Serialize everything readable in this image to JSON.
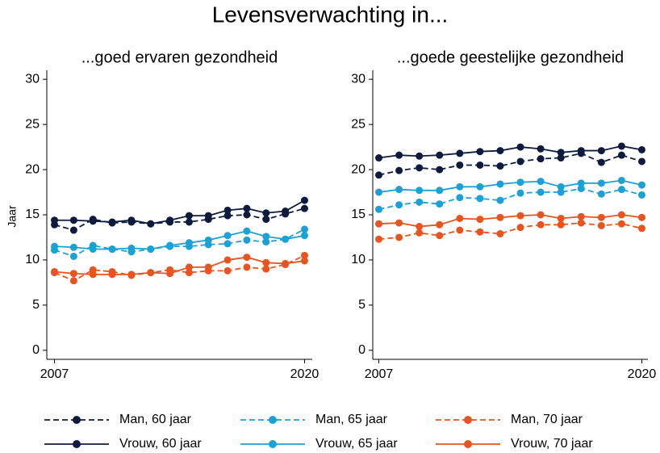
{
  "title": "Levensverwachting in...",
  "legend": [
    {
      "name": "Man, 60 jaar",
      "color": "#0d1b3e",
      "dashed": true
    },
    {
      "name": "Vrouw, 60 jaar",
      "color": "#0d1b3e",
      "dashed": false
    },
    {
      "name": "Man, 65 jaar",
      "color": "#1ba1d6",
      "dashed": true
    },
    {
      "name": "Vrouw, 65 jaar",
      "color": "#1ba1d6",
      "dashed": false
    },
    {
      "name": "Man, 70 jaar",
      "color": "#e8531e",
      "dashed": true
    },
    {
      "name": "Vrouw, 70 jaar",
      "color": "#e8531e",
      "dashed": false
    }
  ],
  "chart_data": [
    {
      "type": "line",
      "title": "...goed ervaren gezondheid",
      "ylabel": "Jaar",
      "x": [
        2007,
        2008,
        2009,
        2010,
        2011,
        2012,
        2013,
        2014,
        2015,
        2016,
        2017,
        2018,
        2019,
        2020
      ],
      "xlim": [
        2006.6,
        2020.4
      ],
      "xticks": [
        2007,
        2020
      ],
      "ylim": [
        -1,
        31
      ],
      "yticks": [
        0,
        5,
        10,
        15,
        20,
        25,
        30
      ],
      "series": [
        {
          "values": [
            13.9,
            13.3,
            14.5,
            14.1,
            14.2,
            14.0,
            14.2,
            14.2,
            14.5,
            14.9,
            15.0,
            14.5,
            15.1,
            15.7
          ]
        },
        {
          "values": [
            14.4,
            14.4,
            14.3,
            14.2,
            14.4,
            14.0,
            14.4,
            14.9,
            14.9,
            15.5,
            15.7,
            15.2,
            15.4,
            16.6
          ]
        },
        {
          "values": [
            11.1,
            10.4,
            11.6,
            11.2,
            10.9,
            11.2,
            11.5,
            11.5,
            11.7,
            11.8,
            12.2,
            12.0,
            12.3,
            13.4
          ]
        },
        {
          "values": [
            11.5,
            11.4,
            11.2,
            11.2,
            11.3,
            11.2,
            11.6,
            11.9,
            12.2,
            12.7,
            13.2,
            12.6,
            12.3,
            12.7
          ]
        },
        {
          "values": [
            8.6,
            7.7,
            8.9,
            8.7,
            8.3,
            8.6,
            8.9,
            8.6,
            8.8,
            8.8,
            9.2,
            9.0,
            9.5,
            10.5
          ]
        },
        {
          "values": [
            8.7,
            8.5,
            8.4,
            8.4,
            8.4,
            8.6,
            8.5,
            9.2,
            9.2,
            10.0,
            10.3,
            9.7,
            9.6,
            9.9
          ]
        }
      ]
    },
    {
      "type": "line",
      "title": "...goede geestelijke gezondheid",
      "x": [
        2007,
        2008,
        2009,
        2010,
        2011,
        2012,
        2013,
        2014,
        2015,
        2016,
        2017,
        2018,
        2019,
        2020
      ],
      "xlim": [
        2006.7,
        2020.3
      ],
      "xticks": [
        2007,
        2020
      ],
      "ylim": [
        -1,
        31
      ],
      "yticks": [
        0,
        5,
        10,
        15,
        20,
        25,
        30
      ],
      "series": [
        {
          "values": [
            19.4,
            19.9,
            20.2,
            20.0,
            20.5,
            20.5,
            20.4,
            20.9,
            21.2,
            21.3,
            21.8,
            20.8,
            21.6,
            20.9
          ]
        },
        {
          "values": [
            21.3,
            21.6,
            21.5,
            21.6,
            21.8,
            22.0,
            22.1,
            22.5,
            22.3,
            21.9,
            22.1,
            22.1,
            22.6,
            22.2
          ]
        },
        {
          "values": [
            15.6,
            16.1,
            16.4,
            16.2,
            16.9,
            16.8,
            16.6,
            17.4,
            17.5,
            17.5,
            17.9,
            17.3,
            17.8,
            17.2
          ]
        },
        {
          "values": [
            17.5,
            17.8,
            17.7,
            17.7,
            18.1,
            18.1,
            18.4,
            18.6,
            18.7,
            18.1,
            18.5,
            18.5,
            18.8,
            18.3
          ]
        },
        {
          "values": [
            12.3,
            12.5,
            13.0,
            12.7,
            13.3,
            13.1,
            12.9,
            13.6,
            13.9,
            13.9,
            14.1,
            13.8,
            14.0,
            13.5
          ]
        },
        {
          "values": [
            14.0,
            14.1,
            13.7,
            13.9,
            14.6,
            14.5,
            14.7,
            14.9,
            15.0,
            14.6,
            14.8,
            14.7,
            15.0,
            14.7
          ]
        }
      ]
    }
  ]
}
